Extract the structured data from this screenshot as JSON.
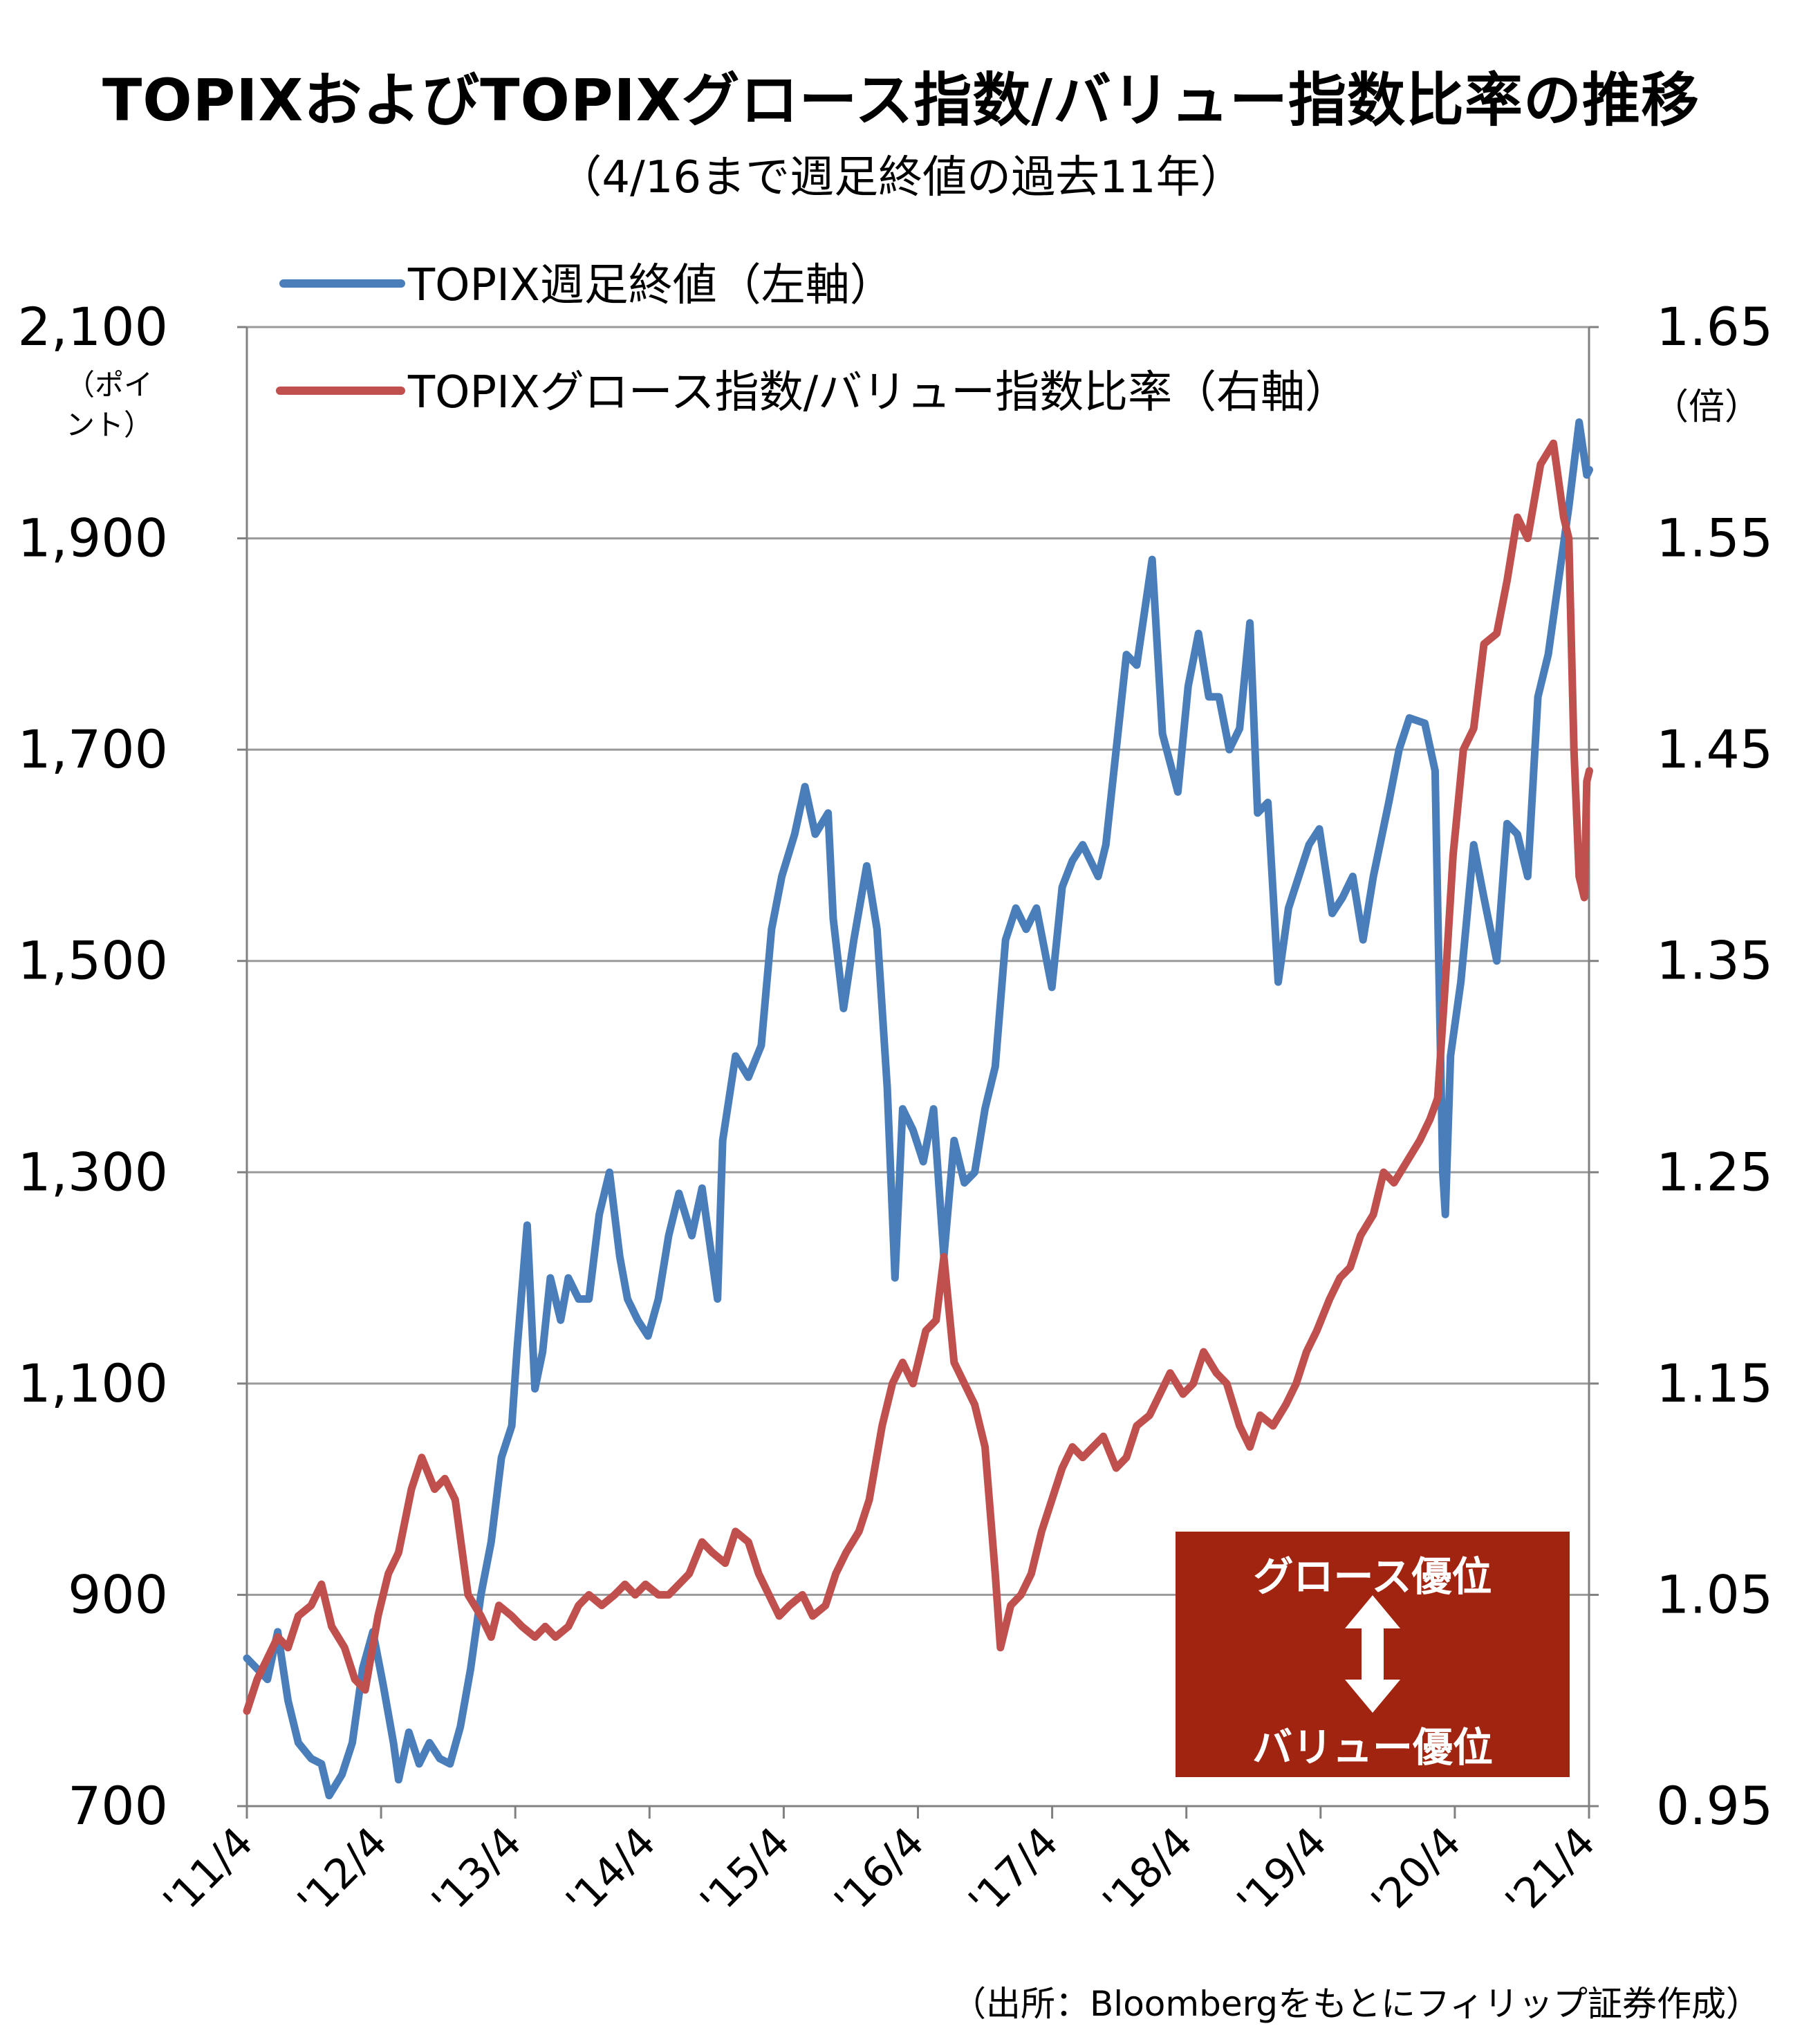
{
  "title": "TOPIXおよびTOPIXグロース指数/バリュー指数比率の推移",
  "subtitle": "（4/16まで週足終値の過去11年）",
  "left_unit": [
    "（ポイ",
    "ント）"
  ],
  "right_unit": "（倍）",
  "source": "（出所：Bloombergをもとにフィリップ証券作成）",
  "annotation": {
    "top": "グロース優位",
    "bottom": "バリュー優位",
    "icon": "up-down-arrow-icon",
    "color": "#A02410"
  },
  "chart_data": {
    "type": "line",
    "x_labels": [
      "'11/4",
      "'12/4",
      "'13/4",
      "'14/4",
      "'15/4",
      "'16/4",
      "'17/4",
      "'18/4",
      "'19/4",
      "'20/4",
      "'21/4"
    ],
    "x_range": [
      "2011-04",
      "2021-04"
    ],
    "y_left": {
      "ticks": [
        "2,100",
        "1,900",
        "1,700",
        "1,500",
        "1,300",
        "1,100",
        "900",
        "700"
      ],
      "min": 700,
      "max": 2100
    },
    "y_right": {
      "ticks": [
        "1.65",
        "1.55",
        "1.45",
        "1.35",
        "1.25",
        "1.15",
        "1.05",
        "0.95"
      ],
      "min": 0.95,
      "max": 1.65
    },
    "grid": true,
    "legend_position": "top-left",
    "series": [
      {
        "name": "TOPIX週足終値（左軸）",
        "axis": "left",
        "color": "#4a7ebb",
        "points": [
          [
            "2011-04-15",
            840
          ],
          [
            "2011-05-13",
            830
          ],
          [
            "2011-06-10",
            820
          ],
          [
            "2011-07-08",
            865
          ],
          [
            "2011-08-05",
            800
          ],
          [
            "2011-09-02",
            760
          ],
          [
            "2011-10-07",
            745
          ],
          [
            "2011-11-04",
            740
          ],
          [
            "2011-11-25",
            710
          ],
          [
            "2011-12-30",
            730
          ],
          [
            "2012-01-27",
            760
          ],
          [
            "2012-02-24",
            830
          ],
          [
            "2012-03-23",
            865
          ],
          [
            "2012-04-20",
            815
          ],
          [
            "2012-05-18",
            760
          ],
          [
            "2012-06-01",
            725
          ],
          [
            "2012-06-29",
            770
          ],
          [
            "2012-07-27",
            740
          ],
          [
            "2012-08-24",
            760
          ],
          [
            "2012-09-21",
            745
          ],
          [
            "2012-10-19",
            740
          ],
          [
            "2012-11-16",
            775
          ],
          [
            "2012-12-14",
            830
          ],
          [
            "2013-01-11",
            900
          ],
          [
            "2013-02-08",
            950
          ],
          [
            "2013-03-08",
            1030
          ],
          [
            "2013-04-05",
            1060
          ],
          [
            "2013-04-19",
            1130
          ],
          [
            "2013-05-17",
            1250
          ],
          [
            "2013-06-07",
            1095
          ],
          [
            "2013-06-28",
            1130
          ],
          [
            "2013-07-19",
            1200
          ],
          [
            "2013-08-16",
            1160
          ],
          [
            "2013-09-06",
            1200
          ],
          [
            "2013-10-04",
            1180
          ],
          [
            "2013-11-01",
            1180
          ],
          [
            "2013-11-29",
            1260
          ],
          [
            "2013-12-27",
            1300
          ],
          [
            "2014-01-24",
            1220
          ],
          [
            "2014-02-14",
            1180
          ],
          [
            "2014-03-14",
            1160
          ],
          [
            "2014-04-11",
            1145
          ],
          [
            "2014-05-09",
            1180
          ],
          [
            "2014-06-06",
            1240
          ],
          [
            "2014-07-04",
            1280
          ],
          [
            "2014-08-08",
            1240
          ],
          [
            "2014-09-05",
            1285
          ],
          [
            "2014-10-17",
            1180
          ],
          [
            "2014-10-31",
            1330
          ],
          [
            "2014-12-05",
            1410
          ],
          [
            "2015-01-09",
            1390
          ],
          [
            "2015-02-13",
            1420
          ],
          [
            "2015-03-13",
            1530
          ],
          [
            "2015-04-10",
            1580
          ],
          [
            "2015-05-15",
            1620
          ],
          [
            "2015-06-12",
            1665
          ],
          [
            "2015-07-10",
            1620
          ],
          [
            "2015-08-14",
            1640
          ],
          [
            "2015-08-28",
            1540
          ],
          [
            "2015-09-25",
            1455
          ],
          [
            "2015-10-23",
            1520
          ],
          [
            "2015-11-27",
            1590
          ],
          [
            "2015-12-25",
            1530
          ],
          [
            "2016-01-22",
            1380
          ],
          [
            "2016-02-12",
            1200
          ],
          [
            "2016-03-04",
            1360
          ],
          [
            "2016-04-01",
            1340
          ],
          [
            "2016-04-29",
            1310
          ],
          [
            "2016-05-27",
            1360
          ],
          [
            "2016-06-24",
            1220
          ],
          [
            "2016-07-22",
            1330
          ],
          [
            "2016-08-19",
            1290
          ],
          [
            "2016-09-16",
            1300
          ],
          [
            "2016-10-14",
            1360
          ],
          [
            "2016-11-11",
            1400
          ],
          [
            "2016-12-09",
            1520
          ],
          [
            "2017-01-06",
            1550
          ],
          [
            "2017-02-03",
            1530
          ],
          [
            "2017-03-03",
            1550
          ],
          [
            "2017-04-14",
            1475
          ],
          [
            "2017-05-12",
            1570
          ],
          [
            "2017-06-09",
            1595
          ],
          [
            "2017-07-07",
            1610
          ],
          [
            "2017-08-18",
            1580
          ],
          [
            "2017-09-08",
            1610
          ],
          [
            "2017-10-06",
            1700
          ],
          [
            "2017-11-03",
            1790
          ],
          [
            "2017-12-01",
            1780
          ],
          [
            "2018-01-12",
            1880
          ],
          [
            "2018-02-09",
            1715
          ],
          [
            "2018-03-23",
            1660
          ],
          [
            "2018-04-20",
            1760
          ],
          [
            "2018-05-18",
            1810
          ],
          [
            "2018-06-15",
            1750
          ],
          [
            "2018-07-13",
            1750
          ],
          [
            "2018-08-10",
            1700
          ],
          [
            "2018-09-07",
            1720
          ],
          [
            "2018-10-05",
            1820
          ],
          [
            "2018-10-26",
            1640
          ],
          [
            "2018-11-23",
            1650
          ],
          [
            "2018-12-21",
            1480
          ],
          [
            "2019-01-18",
            1550
          ],
          [
            "2019-02-15",
            1580
          ],
          [
            "2019-03-15",
            1610
          ],
          [
            "2019-04-12",
            1625
          ],
          [
            "2019-05-17",
            1545
          ],
          [
            "2019-06-14",
            1560
          ],
          [
            "2019-07-12",
            1580
          ],
          [
            "2019-08-09",
            1520
          ],
          [
            "2019-09-06",
            1580
          ],
          [
            "2019-10-18",
            1650
          ],
          [
            "2019-11-15",
            1700
          ],
          [
            "2019-12-13",
            1730
          ],
          [
            "2020-01-24",
            1725
          ],
          [
            "2020-02-21",
            1680
          ],
          [
            "2020-03-13",
            1300
          ],
          [
            "2020-03-20",
            1260
          ],
          [
            "2020-04-03",
            1410
          ],
          [
            "2020-05-01",
            1480
          ],
          [
            "2020-06-05",
            1610
          ],
          [
            "2020-07-03",
            1560
          ],
          [
            "2020-08-07",
            1500
          ],
          [
            "2020-09-04",
            1630
          ],
          [
            "2020-10-02",
            1620
          ],
          [
            "2020-10-30",
            1580
          ],
          [
            "2020-11-27",
            1750
          ],
          [
            "2020-12-25",
            1790
          ],
          [
            "2021-01-22",
            1860
          ],
          [
            "2021-02-19",
            1930
          ],
          [
            "2021-03-19",
            2010
          ],
          [
            "2021-04-09",
            1960
          ],
          [
            "2021-04-16",
            1965
          ]
        ]
      },
      {
        "name": "TOPIXグロース指数/バリュー指数比率（右軸）",
        "axis": "right",
        "color": "#c0504d",
        "points": [
          [
            "2011-04-15",
            0.995
          ],
          [
            "2011-05-13",
            1.01
          ],
          [
            "2011-06-10",
            1.02
          ],
          [
            "2011-07-08",
            1.03
          ],
          [
            "2011-08-05",
            1.025
          ],
          [
            "2011-09-02",
            1.04
          ],
          [
            "2011-10-07",
            1.045
          ],
          [
            "2011-11-04",
            1.055
          ],
          [
            "2011-12-02",
            1.035
          ],
          [
            "2012-01-06",
            1.025
          ],
          [
            "2012-02-03",
            1.01
          ],
          [
            "2012-03-02",
            1.005
          ],
          [
            "2012-04-06",
            1.04
          ],
          [
            "2012-05-04",
            1.06
          ],
          [
            "2012-06-01",
            1.07
          ],
          [
            "2012-07-06",
            1.1
          ],
          [
            "2012-08-03",
            1.115
          ],
          [
            "2012-09-07",
            1.1
          ],
          [
            "2012-10-05",
            1.105
          ],
          [
            "2012-11-02",
            1.095
          ],
          [
            "2012-12-07",
            1.05
          ],
          [
            "2013-01-11",
            1.04
          ],
          [
            "2013-02-08",
            1.03
          ],
          [
            "2013-03-01",
            1.045
          ],
          [
            "2013-04-05",
            1.04
          ],
          [
            "2013-05-03",
            1.035
          ],
          [
            "2013-06-07",
            1.03
          ],
          [
            "2013-07-05",
            1.035
          ],
          [
            "2013-08-02",
            1.03
          ],
          [
            "2013-09-06",
            1.035
          ],
          [
            "2013-10-04",
            1.045
          ],
          [
            "2013-11-01",
            1.05
          ],
          [
            "2013-12-06",
            1.045
          ],
          [
            "2014-01-10",
            1.05
          ],
          [
            "2014-02-07",
            1.055
          ],
          [
            "2014-03-07",
            1.05
          ],
          [
            "2014-04-04",
            1.055
          ],
          [
            "2014-05-09",
            1.05
          ],
          [
            "2014-06-06",
            1.05
          ],
          [
            "2014-07-04",
            1.055
          ],
          [
            "2014-08-01",
            1.06
          ],
          [
            "2014-09-05",
            1.075
          ],
          [
            "2014-10-03",
            1.07
          ],
          [
            "2014-11-07",
            1.065
          ],
          [
            "2014-12-05",
            1.08
          ],
          [
            "2015-01-09",
            1.075
          ],
          [
            "2015-02-06",
            1.06
          ],
          [
            "2015-03-06",
            1.05
          ],
          [
            "2015-04-03",
            1.04
          ],
          [
            "2015-05-01",
            1.045
          ],
          [
            "2015-06-05",
            1.05
          ],
          [
            "2015-07-03",
            1.04
          ],
          [
            "2015-08-07",
            1.045
          ],
          [
            "2015-09-04",
            1.06
          ],
          [
            "2015-10-02",
            1.07
          ],
          [
            "2015-11-06",
            1.08
          ],
          [
            "2015-12-04",
            1.095
          ],
          [
            "2016-01-08",
            1.13
          ],
          [
            "2016-02-05",
            1.15
          ],
          [
            "2016-03-04",
            1.16
          ],
          [
            "2016-04-01",
            1.15
          ],
          [
            "2016-05-06",
            1.175
          ],
          [
            "2016-06-03",
            1.18
          ],
          [
            "2016-06-24",
            1.21
          ],
          [
            "2016-07-22",
            1.16
          ],
          [
            "2016-08-19",
            1.15
          ],
          [
            "2016-09-16",
            1.14
          ],
          [
            "2016-10-14",
            1.12
          ],
          [
            "2016-11-11",
            1.06
          ],
          [
            "2016-11-25",
            1.025
          ],
          [
            "2016-12-23",
            1.045
          ],
          [
            "2017-01-20",
            1.05
          ],
          [
            "2017-02-17",
            1.06
          ],
          [
            "2017-03-17",
            1.08
          ],
          [
            "2017-04-14",
            1.095
          ],
          [
            "2017-05-12",
            1.11
          ],
          [
            "2017-06-09",
            1.12
          ],
          [
            "2017-07-07",
            1.115
          ],
          [
            "2017-08-04",
            1.12
          ],
          [
            "2017-09-01",
            1.125
          ],
          [
            "2017-10-06",
            1.11
          ],
          [
            "2017-11-03",
            1.115
          ],
          [
            "2017-12-01",
            1.13
          ],
          [
            "2018-01-05",
            1.135
          ],
          [
            "2018-02-02",
            1.145
          ],
          [
            "2018-03-02",
            1.155
          ],
          [
            "2018-04-06",
            1.145
          ],
          [
            "2018-05-04",
            1.15
          ],
          [
            "2018-06-01",
            1.165
          ],
          [
            "2018-07-06",
            1.155
          ],
          [
            "2018-08-03",
            1.15
          ],
          [
            "2018-09-07",
            1.13
          ],
          [
            "2018-10-05",
            1.12
          ],
          [
            "2018-11-02",
            1.135
          ],
          [
            "2018-12-07",
            1.13
          ],
          [
            "2019-01-11",
            1.14
          ],
          [
            "2019-02-08",
            1.15
          ],
          [
            "2019-03-08",
            1.165
          ],
          [
            "2019-04-05",
            1.175
          ],
          [
            "2019-05-10",
            1.19
          ],
          [
            "2019-06-07",
            1.2
          ],
          [
            "2019-07-05",
            1.205
          ],
          [
            "2019-08-02",
            1.22
          ],
          [
            "2019-09-06",
            1.23
          ],
          [
            "2019-10-04",
            1.25
          ],
          [
            "2019-11-01",
            1.245
          ],
          [
            "2019-12-06",
            1.255
          ],
          [
            "2020-01-10",
            1.265
          ],
          [
            "2020-02-07",
            1.275
          ],
          [
            "2020-02-28",
            1.285
          ],
          [
            "2020-03-20",
            1.34
          ],
          [
            "2020-04-10",
            1.4
          ],
          [
            "2020-05-08",
            1.45
          ],
          [
            "2020-06-05",
            1.46
          ],
          [
            "2020-07-03",
            1.5
          ],
          [
            "2020-08-07",
            1.505
          ],
          [
            "2020-09-04",
            1.53
          ],
          [
            "2020-10-02",
            1.56
          ],
          [
            "2020-10-30",
            1.55
          ],
          [
            "2020-12-04",
            1.585
          ],
          [
            "2021-01-08",
            1.595
          ],
          [
            "2021-02-05",
            1.56
          ],
          [
            "2021-02-19",
            1.55
          ],
          [
            "2021-03-05",
            1.45
          ],
          [
            "2021-03-19",
            1.39
          ],
          [
            "2021-04-02",
            1.38
          ],
          [
            "2021-04-09",
            1.435
          ],
          [
            "2021-04-16",
            1.44
          ]
        ]
      }
    ]
  }
}
